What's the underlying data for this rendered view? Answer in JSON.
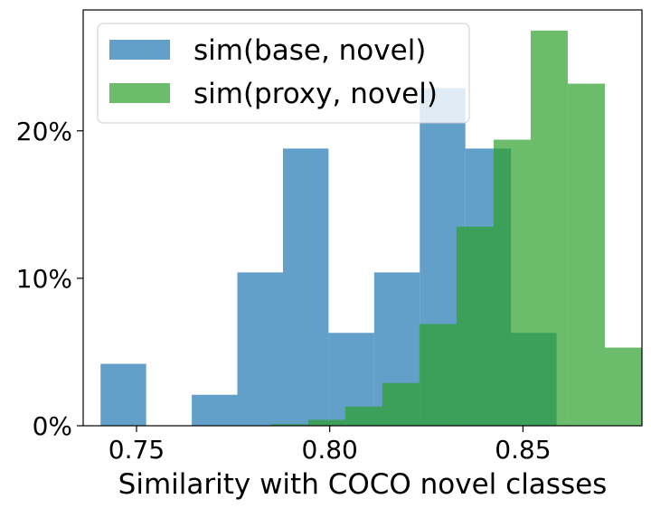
{
  "chart_data": {
    "type": "histogram",
    "xlabel": "Similarity with COCO novel classes",
    "ylabel": "",
    "xlim": [
      0.7362,
      0.8808
    ],
    "ylim": [
      0,
      28.2
    ],
    "xticks": [
      0.75,
      0.8,
      0.85
    ],
    "xtick_labels": [
      "0.75",
      "0.80",
      "0.85"
    ],
    "yticks": [
      0,
      10,
      20
    ],
    "ytick_labels": [
      "0%",
      "10%",
      "20%"
    ],
    "grid": false,
    "legend": {
      "position": "top-left"
    },
    "series": [
      {
        "name": "sim(base, novel)",
        "color": "#1f77b4",
        "alpha": 0.7,
        "bins": [
          {
            "x0": 0.7407,
            "x1": 0.7525,
            "value": 4.2
          },
          {
            "x0": 0.7525,
            "x1": 0.7643,
            "value": 0.0
          },
          {
            "x0": 0.7643,
            "x1": 0.7761,
            "value": 2.1
          },
          {
            "x0": 0.7761,
            "x1": 0.7879,
            "value": 10.4
          },
          {
            "x0": 0.7879,
            "x1": 0.7997,
            "value": 18.8
          },
          {
            "x0": 0.7997,
            "x1": 0.8115,
            "value": 6.3
          },
          {
            "x0": 0.8115,
            "x1": 0.8233,
            "value": 10.4
          },
          {
            "x0": 0.8233,
            "x1": 0.8351,
            "value": 22.9
          },
          {
            "x0": 0.8351,
            "x1": 0.8469,
            "value": 18.8
          },
          {
            "x0": 0.8469,
            "x1": 0.8587,
            "value": 6.3
          }
        ]
      },
      {
        "name": "sim(proxy, novel)",
        "color": "#2ca02c",
        "alpha": 0.7,
        "bins": [
          {
            "x0": 0.7848,
            "x1": 0.7944,
            "value": 0.1
          },
          {
            "x0": 0.7944,
            "x1": 0.804,
            "value": 0.4
          },
          {
            "x0": 0.804,
            "x1": 0.8136,
            "value": 1.3
          },
          {
            "x0": 0.8136,
            "x1": 0.8232,
            "value": 2.9
          },
          {
            "x0": 0.8232,
            "x1": 0.8328,
            "value": 6.9
          },
          {
            "x0": 0.8328,
            "x1": 0.8424,
            "value": 13.5
          },
          {
            "x0": 0.8424,
            "x1": 0.852,
            "value": 19.4
          },
          {
            "x0": 0.852,
            "x1": 0.8616,
            "value": 26.8
          },
          {
            "x0": 0.8616,
            "x1": 0.8712,
            "value": 23.2
          },
          {
            "x0": 0.8712,
            "x1": 0.8808,
            "value": 5.3
          }
        ]
      }
    ]
  }
}
